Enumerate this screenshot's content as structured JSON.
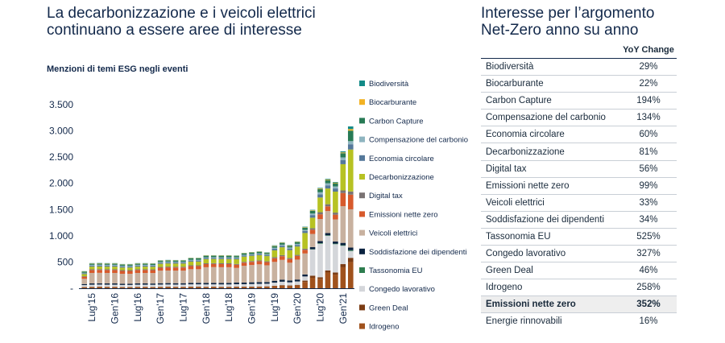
{
  "left_title": [
    "La decarbonizzazione e i veicoli elettrici",
    "continuano a essere aree di interesse"
  ],
  "right_title": [
    "Interesse per l’argomento",
    "Net-Zero anno su anno"
  ],
  "chart_data": {
    "type": "bar",
    "stacked": true,
    "title": "Menzioni di temi ESG negli eventi",
    "ylim": [
      0,
      3500
    ],
    "yticks": [
      0,
      500,
      1000,
      1500,
      2000,
      2500,
      3000,
      3500
    ],
    "ytick_labels": [
      "-",
      "500",
      "1.000",
      "1.500",
      "2.000",
      "2.500",
      "3.000",
      "3.500"
    ],
    "xtick_labels": [
      {
        "label": "Lug'15",
        "index": 1
      },
      {
        "label": "Gen'16",
        "index": 4
      },
      {
        "label": "Lug'16",
        "index": 7
      },
      {
        "label": "Gen'17",
        "index": 10
      },
      {
        "label": "Lug'17",
        "index": 13
      },
      {
        "label": "Gen'18",
        "index": 16
      },
      {
        "label": "Lug'18",
        "index": 19
      },
      {
        "label": "Gen'19",
        "index": 22
      },
      {
        "label": "Lug'19",
        "index": 25
      },
      {
        "label": "Gen'20",
        "index": 28
      },
      {
        "label": "Lug'20",
        "index": 31
      },
      {
        "label": "Gen'21",
        "index": 34
      }
    ],
    "legend_position": "right",
    "series": [
      {
        "name": "Idrogeno",
        "color": "#a0521d",
        "values": [
          20,
          22,
          24,
          22,
          22,
          20,
          20,
          22,
          22,
          20,
          22,
          24,
          22,
          22,
          24,
          24,
          22,
          24,
          22,
          22,
          24,
          24,
          25,
          28,
          30,
          40,
          50,
          45,
          55,
          120,
          200,
          180,
          300,
          260,
          400,
          500
        ]
      },
      {
        "name": "Green Deal",
        "color": "#7b3c14",
        "values": [
          5,
          6,
          6,
          6,
          6,
          5,
          5,
          6,
          6,
          6,
          6,
          6,
          6,
          6,
          6,
          6,
          6,
          6,
          6,
          6,
          6,
          6,
          6,
          6,
          6,
          8,
          10,
          8,
          10,
          25,
          40,
          30,
          40,
          40,
          60,
          80
        ]
      },
      {
        "name": "Congedo lavorativo",
        "color": "#d4d6da",
        "values": [
          35,
          40,
          40,
          40,
          40,
          38,
          38,
          40,
          40,
          40,
          42,
          42,
          42,
          42,
          45,
          45,
          45,
          45,
          45,
          45,
          48,
          48,
          50,
          50,
          50,
          60,
          65,
          60,
          65,
          80,
          500,
          640,
          660,
          540,
          350,
          130
        ]
      },
      {
        "name": "Tassonomia EU",
        "color": "#2e7d4f",
        "values": [
          0,
          0,
          0,
          0,
          0,
          0,
          0,
          0,
          0,
          0,
          0,
          0,
          0,
          0,
          0,
          0,
          0,
          0,
          0,
          0,
          0,
          0,
          0,
          0,
          0,
          0,
          0,
          0,
          0,
          0,
          5,
          10,
          10,
          10,
          10,
          15
        ]
      },
      {
        "name": "Soddisfazione dei dipendenti",
        "color": "#0b2340",
        "values": [
          20,
          24,
          24,
          24,
          24,
          22,
          22,
          24,
          24,
          24,
          26,
          26,
          26,
          26,
          28,
          28,
          28,
          28,
          28,
          28,
          30,
          30,
          32,
          32,
          32,
          34,
          36,
          34,
          36,
          38,
          40,
          40,
          42,
          42,
          45,
          50
        ]
      },
      {
        "name": "Veicoli elettrici",
        "color": "#c8b19f",
        "values": [
          100,
          200,
          200,
          200,
          200,
          190,
          190,
          200,
          200,
          200,
          240,
          240,
          240,
          240,
          260,
          260,
          300,
          300,
          300,
          300,
          280,
          320,
          330,
          340,
          320,
          360,
          380,
          340,
          380,
          400,
          250,
          420,
          420,
          420,
          700,
          730
        ]
      },
      {
        "name": "Emissioni nette zero",
        "color": "#d75a2c",
        "values": [
          40,
          55,
          55,
          55,
          55,
          55,
          55,
          55,
          55,
          55,
          55,
          60,
          60,
          60,
          60,
          60,
          60,
          60,
          60,
          60,
          60,
          60,
          60,
          60,
          60,
          70,
          70,
          70,
          70,
          70,
          80,
          90,
          90,
          90,
          250,
          280
        ]
      },
      {
        "name": "Digital tax",
        "color": "#7a7373",
        "values": [
          10,
          15,
          15,
          15,
          15,
          15,
          15,
          15,
          15,
          15,
          15,
          15,
          15,
          15,
          15,
          15,
          15,
          15,
          15,
          15,
          15,
          15,
          15,
          15,
          15,
          20,
          20,
          20,
          20,
          20,
          30,
          40,
          40,
          40,
          50,
          60
        ]
      },
      {
        "name": "Decarbonizzazione",
        "color": "#b7c223",
        "values": [
          40,
          50,
          50,
          50,
          50,
          50,
          50,
          50,
          50,
          50,
          60,
          60,
          60,
          60,
          70,
          70,
          80,
          80,
          80,
          80,
          90,
          100,
          100,
          100,
          100,
          130,
          150,
          150,
          160,
          300,
          200,
          280,
          300,
          400,
          500,
          800
        ]
      },
      {
        "name": "Economia circolare",
        "color": "#55789a",
        "values": [
          15,
          20,
          20,
          20,
          20,
          20,
          20,
          20,
          20,
          20,
          20,
          20,
          20,
          20,
          20,
          20,
          20,
          20,
          20,
          20,
          20,
          20,
          20,
          20,
          20,
          30,
          30,
          30,
          30,
          40,
          50,
          60,
          60,
          60,
          80,
          100
        ]
      },
      {
        "name": "Compensazione del carbonio",
        "color": "#8fb5c0",
        "values": [
          10,
          15,
          15,
          15,
          15,
          15,
          15,
          15,
          15,
          15,
          15,
          15,
          15,
          15,
          15,
          15,
          15,
          15,
          15,
          15,
          15,
          15,
          15,
          15,
          15,
          20,
          20,
          20,
          20,
          20,
          30,
          40,
          40,
          40,
          50,
          60
        ]
      },
      {
        "name": "Carbon Capture",
        "color": "#287a55",
        "values": [
          20,
          20,
          20,
          20,
          20,
          20,
          20,
          20,
          20,
          20,
          20,
          20,
          20,
          20,
          25,
          25,
          25,
          25,
          25,
          25,
          25,
          25,
          25,
          25,
          25,
          30,
          30,
          30,
          30,
          40,
          50,
          60,
          60,
          60,
          80,
          200
        ]
      },
      {
        "name": "Biocarburante",
        "color": "#f2b223",
        "values": [
          5,
          6,
          6,
          6,
          6,
          6,
          6,
          6,
          6,
          6,
          6,
          6,
          6,
          6,
          6,
          6,
          6,
          6,
          6,
          6,
          6,
          6,
          6,
          6,
          6,
          8,
          8,
          8,
          8,
          10,
          10,
          12,
          12,
          12,
          15,
          30
        ]
      },
      {
        "name": "Biodiversità",
        "color": "#128a87",
        "values": [
          5,
          6,
          6,
          6,
          6,
          6,
          6,
          6,
          6,
          6,
          6,
          6,
          6,
          6,
          6,
          6,
          6,
          6,
          6,
          6,
          6,
          6,
          6,
          6,
          6,
          8,
          8,
          8,
          8,
          10,
          10,
          12,
          12,
          12,
          20,
          50
        ]
      }
    ]
  },
  "table": {
    "header": "YoY Change",
    "rows": [
      {
        "label": "Biodiversità",
        "value": "29%"
      },
      {
        "label": "Biocarburante",
        "value": "22%"
      },
      {
        "label": "Carbon Capture",
        "value": "194%"
      },
      {
        "label": "Compensazione del carbonio",
        "value": "134%"
      },
      {
        "label": "Economia circolare",
        "value": "60%"
      },
      {
        "label": "Decarbonizzazione",
        "value": "81%"
      },
      {
        "label": "Digital tax",
        "value": "56%"
      },
      {
        "label": "Emissioni nette zero",
        "value": "99%"
      },
      {
        "label": "Veicoli elettrici",
        "value": "33%"
      },
      {
        "label": "Soddisfazione dei dipendenti",
        "value": "34%"
      },
      {
        "label": "Tassonomia EU",
        "value": "525%"
      },
      {
        "label": "Congedo lavorativo",
        "value": "327%"
      },
      {
        "label": "Green Deal",
        "value": "46%"
      },
      {
        "label": "Idrogeno",
        "value": "258%"
      },
      {
        "label": "Emissioni nette zero",
        "value": "352%",
        "highlight": true
      },
      {
        "label": "Energie rinnovabili",
        "value": "16%"
      }
    ]
  }
}
